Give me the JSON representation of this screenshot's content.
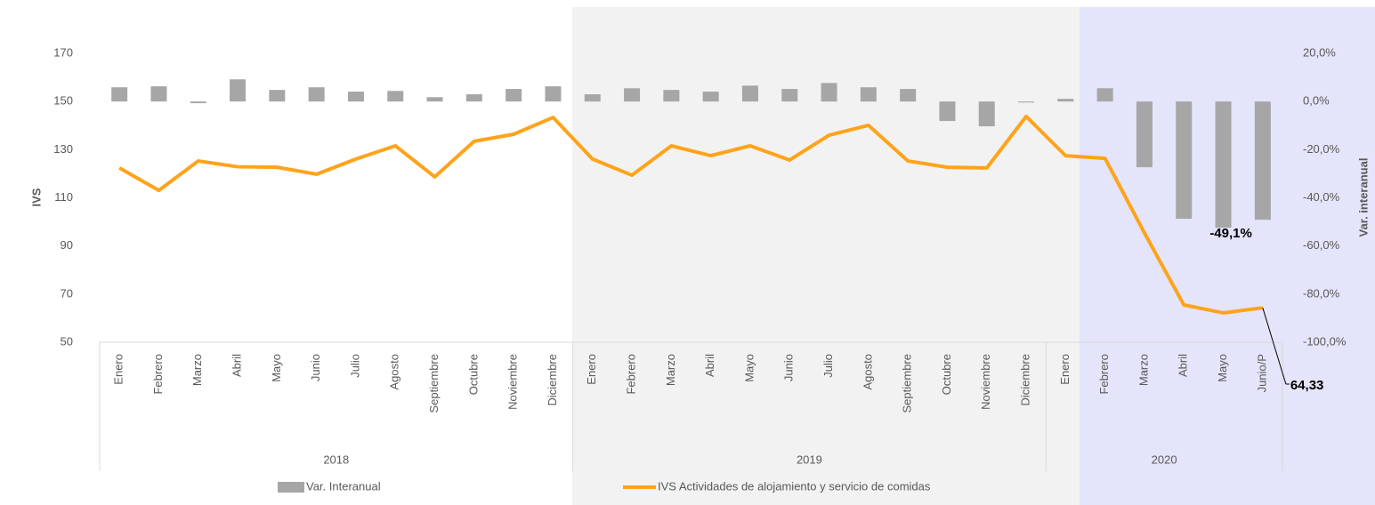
{
  "chart_data": {
    "type": "combo",
    "groups": [
      {
        "name": "2018",
        "categories": [
          "Enero",
          "Febrero",
          "Marzo",
          "Abril",
          "Mayo",
          "Junio",
          "Julio",
          "Agosto",
          "Septiembre",
          "Octubre",
          "Noviembre",
          "Diciembre"
        ]
      },
      {
        "name": "2019",
        "categories": [
          "Enero",
          "Febrero",
          "Marzo",
          "Abril",
          "Mayo",
          "Junio",
          "Julio",
          "Agosto",
          "Septiembre",
          "Octubre",
          "Noviembre",
          "Diciembre"
        ]
      },
      {
        "name": "2020",
        "categories": [
          "Enero",
          "Febrero",
          "Marzo",
          "Abril",
          "Mayo",
          "Junio/P"
        ]
      }
    ],
    "y_label": "IVS",
    "y2_label": "Var. interanual",
    "ylim": [
      50,
      170
    ],
    "yticks": [
      50,
      70,
      90,
      110,
      130,
      150,
      170
    ],
    "y2lim": [
      -100,
      20
    ],
    "y2ticks": [
      {
        "value": -100,
        "label": "-100,0%"
      },
      {
        "value": -80,
        "label": "-80,0%"
      },
      {
        "value": -60,
        "label": "-60,0%"
      },
      {
        "value": -40,
        "label": "-40,0%"
      },
      {
        "value": -20,
        "label": "-20,0%"
      },
      {
        "value": 0,
        "label": "0,0%"
      },
      {
        "value": 20,
        "label": "20,0%"
      }
    ],
    "series": [
      {
        "name": "Var. Interanual",
        "type": "bar",
        "axis": "y2",
        "color": "#a6a6a6",
        "values": [
          5.9,
          6.3,
          -0.7,
          9.2,
          4.8,
          5.9,
          4.1,
          4.4,
          1.8,
          3.0,
          5.2,
          6.3,
          3.0,
          5.5,
          4.8,
          4.1,
          6.6,
          5.2,
          7.7,
          5.9,
          5.2,
          -8.1,
          -10.3,
          -0.4,
          1.1,
          5.5,
          -27.3,
          -48.7,
          -52.4,
          -49.1
        ],
        "value_labels": [
          null,
          null,
          null,
          null,
          null,
          null,
          null,
          null,
          null,
          null,
          null,
          null,
          null,
          null,
          null,
          null,
          null,
          null,
          null,
          null,
          null,
          null,
          null,
          null,
          null,
          null,
          null,
          null,
          null,
          "-49,1%"
        ]
      },
      {
        "name": "IVS Actividades de alojamiento y servicio de comidas",
        "type": "line",
        "axis": "y",
        "color": "#ffa31a",
        "values": [
          122.4,
          113.1,
          125.3,
          122.9,
          122.7,
          119.8,
          126.1,
          131.6,
          118.7,
          133.5,
          136.4,
          143.4,
          126.1,
          119.4,
          131.6,
          127.5,
          131.6,
          125.7,
          136.0,
          140.1,
          125.3,
          122.7,
          122.4,
          143.8,
          127.5,
          126.4,
          95.4,
          65.5,
          62.2,
          64.33
        ],
        "value_labels": [
          null,
          null,
          null,
          null,
          null,
          null,
          null,
          null,
          null,
          null,
          null,
          null,
          null,
          null,
          null,
          null,
          null,
          null,
          null,
          null,
          null,
          null,
          null,
          null,
          null,
          null,
          null,
          null,
          null,
          "64,33"
        ]
      }
    ]
  }
}
